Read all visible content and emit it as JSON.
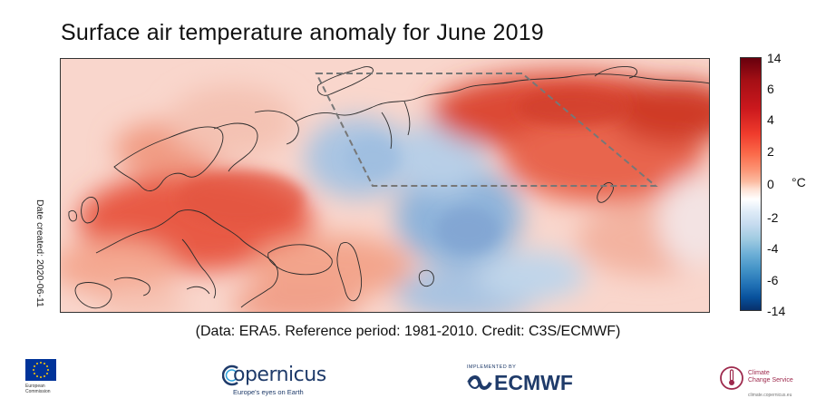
{
  "title": "Surface air temperature anomaly for June 2019",
  "side_label": "Date created: 2020-06-11",
  "caption": "(Data: ERA5.  Reference period: 1981-2010.  Credit: C3S/ECMWF)",
  "colorbar": {
    "ticks": [
      "14",
      "6",
      "4",
      "2",
      "0",
      "-2",
      "-4",
      "-6",
      "-14"
    ],
    "unit": "°C",
    "colors": {
      "max": "#67000d",
      "zero": "#ffffff",
      "min": "#08306b"
    }
  },
  "map": {
    "region": "Europe and western Siberia",
    "highlight_box": "dashed grey outline over northwestern Siberia",
    "warm_color": "#e8584a",
    "cool_color": "#7fa7d3"
  },
  "logos": {
    "eu": {
      "text": "European Commission",
      "icon": "eu-flag-icon"
    },
    "copernicus": {
      "name": "opernicus",
      "tagline": "Europe's eyes on Earth",
      "icon": "copernicus-c-icon"
    },
    "ecmwf": {
      "implemented": "IMPLEMENTED BY",
      "name": "ECMWF",
      "icon": "ecmwf-wave-icon"
    },
    "c3s": {
      "name_line1": "Climate",
      "name_line2": "Change Service",
      "url": "climate.copernicus.eu",
      "icon": "c3s-thermometer-icon"
    }
  }
}
